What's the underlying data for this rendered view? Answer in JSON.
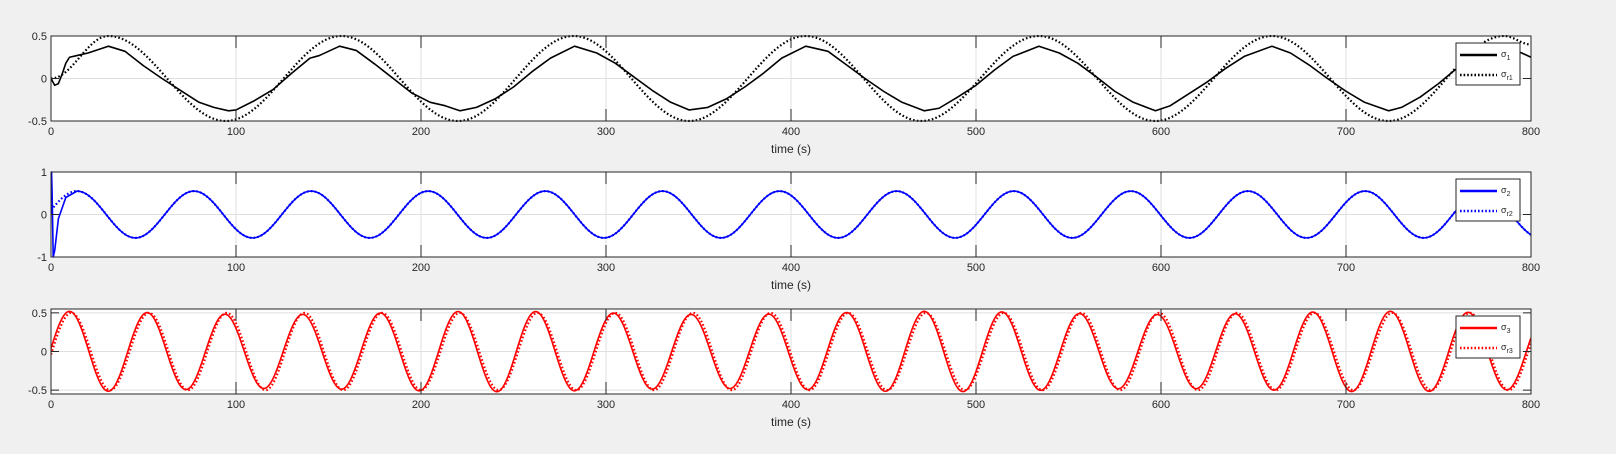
{
  "window": {
    "background": "#f0f0f0"
  },
  "chart_data": [
    {
      "type": "line",
      "xlabel": "time (s)",
      "ylabel": "",
      "xlim": [
        0,
        800
      ],
      "ylim": [
        -0.5,
        0.5
      ],
      "xticks": [
        "0",
        "100",
        "200",
        "300",
        "400",
        "500",
        "600",
        "700",
        "800"
      ],
      "yticks": [
        "-0.5",
        "0",
        "0.5"
      ],
      "grid": true,
      "legend_position": "top-right",
      "color": "#000000",
      "series": [
        {
          "name": "σ1",
          "name_base": "σ",
          "name_sub": "1",
          "style": "solid",
          "x": [
            0,
            2,
            4,
            6,
            8,
            10,
            14,
            20,
            31,
            40,
            50,
            60,
            70,
            80,
            88,
            96,
            100,
            110,
            120,
            130,
            140,
            145,
            156,
            165,
            175,
            185,
            195,
            205,
            213,
            221,
            230,
            240,
            250,
            260,
            270,
            283,
            295,
            305,
            315,
            325,
            335,
            345,
            355,
            365,
            375,
            385,
            395,
            408,
            420,
            430,
            440,
            450,
            460,
            472,
            480,
            490,
            500,
            510,
            520,
            534,
            545,
            555,
            565,
            575,
            585,
            597,
            605,
            615,
            625,
            635,
            645,
            660,
            670,
            680,
            690,
            700,
            710,
            723,
            730,
            740,
            750,
            760,
            770,
            785,
            795,
            800
          ],
          "y": [
            0,
            -0.08,
            -0.06,
            0.05,
            0.18,
            0.25,
            0.27,
            0.3,
            0.38,
            0.32,
            0.15,
            0.0,
            -0.14,
            -0.28,
            -0.34,
            -0.38,
            -0.37,
            -0.26,
            -0.13,
            0.06,
            0.24,
            0.27,
            0.38,
            0.33,
            0.17,
            0.0,
            -0.17,
            -0.28,
            -0.32,
            -0.38,
            -0.34,
            -0.24,
            -0.1,
            0.08,
            0.24,
            0.38,
            0.3,
            0.18,
            0.02,
            -0.14,
            -0.28,
            -0.37,
            -0.34,
            -0.24,
            -0.1,
            0.06,
            0.24,
            0.38,
            0.32,
            0.16,
            0.0,
            -0.15,
            -0.28,
            -0.38,
            -0.35,
            -0.22,
            -0.08,
            0.1,
            0.26,
            0.38,
            0.3,
            0.18,
            0.02,
            -0.15,
            -0.28,
            -0.38,
            -0.32,
            -0.18,
            -0.04,
            0.12,
            0.26,
            0.38,
            0.3,
            0.16,
            0.0,
            -0.15,
            -0.28,
            -0.38,
            -0.34,
            -0.22,
            -0.06,
            0.12,
            0.26,
            0.38,
            0.3,
            0.25
          ]
        },
        {
          "name": "σr1",
          "name_base": "σ",
          "name_sub": "r1",
          "style": "dotted",
          "x": [
            0,
            31,
            94.5,
            157,
            220,
            282.5,
            345,
            408,
            470.5,
            534,
            597,
            660,
            723,
            785.5,
            800
          ],
          "y": [
            0,
            0.5,
            -0.5,
            0.5,
            -0.5,
            0.5,
            -0.5,
            0.5,
            -0.5,
            0.5,
            -0.5,
            0.5,
            -0.5,
            0.5,
            0.4
          ],
          "smooth": true
        }
      ]
    },
    {
      "type": "line",
      "xlabel": "time (s)",
      "ylabel": "",
      "xlim": [
        0,
        800
      ],
      "ylim": [
        -1,
        1
      ],
      "xticks": [
        "0",
        "100",
        "200",
        "300",
        "400",
        "500",
        "600",
        "700",
        "800"
      ],
      "yticks": [
        "-1",
        "0",
        "1"
      ],
      "grid": true,
      "legend_position": "top-right",
      "color": "#0000ff",
      "series": [
        {
          "name": "σ2",
          "name_base": "σ",
          "name_sub": "2",
          "style": "solid",
          "x": [
            0,
            0.3,
            0.6,
            1.2,
            2,
            4,
            8,
            14
          ],
          "y": [
            0,
            1,
            0.5,
            -1,
            -0.85,
            -0.1,
            0.4,
            0.55
          ],
          "continue_sine": {
            "amplitude": 0.55,
            "period": 63.3,
            "phase_peak": 14,
            "x_end": 800
          }
        },
        {
          "name": "σr2",
          "name_base": "σ",
          "name_sub": "r2",
          "style": "dotted",
          "sine": {
            "amplitude": 0.55,
            "period": 63.3,
            "phase_peak": 14,
            "x_start": 0,
            "x_end": 800
          }
        }
      ]
    },
    {
      "type": "line",
      "xlabel": "time (s)",
      "ylabel": "",
      "xlim": [
        0,
        800
      ],
      "ylim": [
        -0.55,
        0.55
      ],
      "xticks": [
        "0",
        "100",
        "200",
        "300",
        "400",
        "500",
        "600",
        "700",
        "800"
      ],
      "yticks": [
        "-0.5",
        "0",
        "0.5"
      ],
      "ytick_values": [
        -0.5,
        0,
        0.5
      ],
      "grid": true,
      "legend_position": "top-right",
      "color": "#ff0000",
      "series": [
        {
          "name": "σ3",
          "name_base": "σ",
          "name_sub": "3",
          "style": "solid",
          "sine": {
            "amplitude": 0.52,
            "period": 42,
            "phase_peak": 10,
            "x_start": 0,
            "x_end": 800,
            "beat": 0.08
          }
        },
        {
          "name": "σr3",
          "name_base": "σ",
          "name_sub": "r3",
          "style": "dotted",
          "sine": {
            "amplitude": 0.5,
            "period": 42,
            "phase_peak": 11,
            "x_start": 0,
            "x_end": 800
          }
        }
      ]
    }
  ]
}
